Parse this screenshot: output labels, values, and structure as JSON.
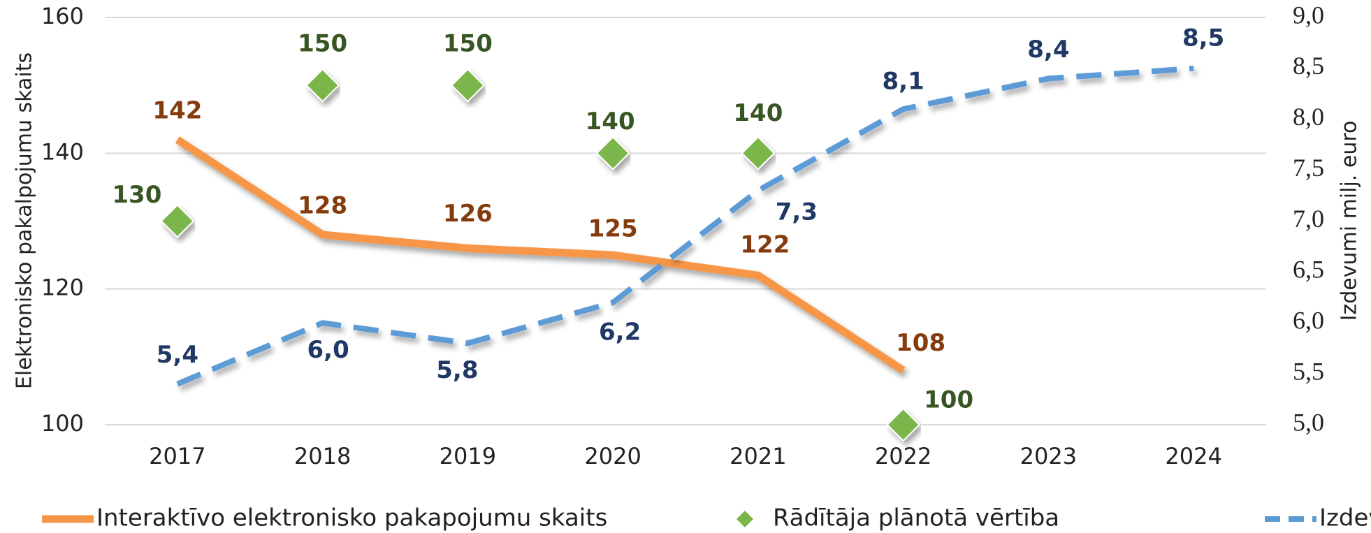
{
  "chart_data": {
    "type": "line",
    "y_label": "Elektronisko pakalpojumu skaits",
    "y2_label": "Izdevumi milj. euro",
    "categories": [
      "2017",
      "2018",
      "2019",
      "2020",
      "2021",
      "2022",
      "2023",
      "2024"
    ],
    "ylim": [
      100,
      160
    ],
    "yticks": [
      100,
      120,
      140,
      160
    ],
    "y2lim": [
      5,
      9
    ],
    "y2ticks": [
      {
        "value": 5,
        "label": "5,0"
      },
      {
        "value": 5.5,
        "label": "5,5"
      },
      {
        "value": 6,
        "label": "6,0"
      },
      {
        "value": 6.5,
        "label": "6,5"
      },
      {
        "value": 7,
        "label": "7,0"
      },
      {
        "value": 7.5,
        "label": "7,5"
      },
      {
        "value": 8,
        "label": "8,0"
      },
      {
        "value": 8.5,
        "label": "8,5"
      },
      {
        "value": 9,
        "label": "9,0"
      }
    ],
    "grid": true,
    "series": [
      {
        "name": "Interaktīvo elektronisko pakapojumu skaits",
        "color": "#f79646",
        "label_color": "#843c0c",
        "style": "solid",
        "values": [
          142,
          128,
          126,
          125,
          122,
          108,
          null,
          null
        ]
      },
      {
        "name": "Rādītāja plānotā vērtība",
        "color": "#7ab648",
        "label_color": "#375623",
        "style": "marker",
        "values": [
          130,
          150,
          150,
          140,
          140,
          100,
          null,
          null
        ]
      },
      {
        "name": "Izdevumi*",
        "color": "#5b9bd5",
        "label_color": "#1f3864",
        "style": "dashed",
        "axis": "y2",
        "values": [
          5.4,
          6.0,
          5.8,
          6.2,
          7.3,
          8.1,
          8.4,
          8.5
        ],
        "value_labels": [
          "5,4",
          "6,0",
          "5,8",
          "6,2",
          "7,3",
          "8,1",
          "8,4",
          "8,5"
        ]
      }
    ]
  }
}
